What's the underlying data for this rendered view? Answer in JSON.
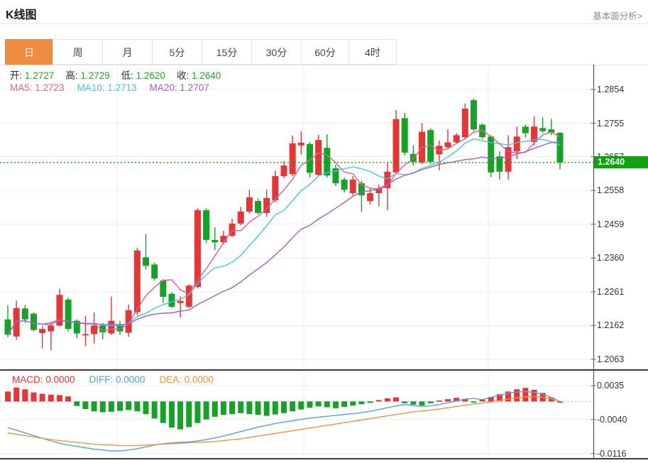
{
  "header": {
    "title": "K线图",
    "link": "基本面分析>"
  },
  "tabs": {
    "items": [
      "日",
      "周",
      "月",
      "5分",
      "15分",
      "30分",
      "60分",
      "4时"
    ],
    "active": "日",
    "active_bg": "#ef8c40"
  },
  "quote": {
    "items": [
      {
        "label": "开:",
        "value": "1.2727"
      },
      {
        "label": "高:",
        "value": "1.2729"
      },
      {
        "label": "低:",
        "value": "1.2620"
      },
      {
        "label": "收:",
        "value": "1.2640"
      }
    ],
    "value_color": "#2ba52b"
  },
  "ma_legend": {
    "items": [
      {
        "label": "MA5:",
        "value": "1.2723",
        "color": "#e85d8a"
      },
      {
        "label": "MA10:",
        "value": "1.2713",
        "color": "#3fc8e8"
      },
      {
        "label": "MA20:",
        "value": "1.2707",
        "color": "#9f5fd0"
      }
    ]
  },
  "macd_legend": {
    "items": [
      {
        "label": "MACD:",
        "value": "0.0000",
        "color": "#e73434"
      },
      {
        "label": "DIFF:",
        "value": "0.0000",
        "color": "#55a0e8"
      },
      {
        "label": "DEA:",
        "value": "0.0000",
        "color": "#f2953a"
      }
    ]
  },
  "price_tag": {
    "value": "1.2640",
    "bg": "#0fa30f"
  },
  "colors": {
    "up": "#e73434",
    "down": "#15a325",
    "grid": "#e9eef5",
    "axis": "#555555",
    "separator": "#3a3a3a",
    "zero_dotted": "#a9cfee",
    "price_dotted": "#0fa30f"
  },
  "chart_data": {
    "type": "candlestick+macd",
    "title": "K线图",
    "interval": "日",
    "legend_position": "top-left",
    "grid": true,
    "price_panel": {
      "yticks": [
        "1.2854",
        "1.2755",
        "1.2657",
        "1.2558",
        "1.2459",
        "1.2360",
        "1.2261",
        "1.2162",
        "1.2063"
      ],
      "ylim": [
        1.2063,
        1.2854
      ],
      "current_price": 1.264,
      "ma_periods": [
        5,
        10,
        20
      ],
      "candles_format": [
        "open",
        "high",
        "low",
        "close"
      ],
      "candles": [
        [
          1.218,
          1.2222,
          1.2128,
          1.2135
        ],
        [
          1.213,
          1.2235,
          1.212,
          1.2213
        ],
        [
          1.2212,
          1.2222,
          1.217,
          1.218
        ],
        [
          1.2197,
          1.2201,
          1.2145,
          1.2149
        ],
        [
          1.214,
          1.216,
          1.2095,
          1.2152
        ],
        [
          1.2145,
          1.217,
          1.209,
          1.2162
        ],
        [
          1.2162,
          1.227,
          1.216,
          1.2252
        ],
        [
          1.2238,
          1.2244,
          1.2145,
          1.2152
        ],
        [
          1.2176,
          1.218,
          1.2125,
          1.2139
        ],
        [
          1.2133,
          1.219,
          1.2102,
          1.2137
        ],
        [
          1.2137,
          1.22,
          1.211,
          1.2162
        ],
        [
          1.2162,
          1.217,
          1.2122,
          1.2142
        ],
        [
          1.2139,
          1.2247,
          1.2135,
          1.2176
        ],
        [
          1.2166,
          1.2176,
          1.2135,
          1.2145
        ],
        [
          1.2141,
          1.2224,
          1.2129,
          1.2207
        ],
        [
          1.2201,
          1.239,
          1.2193,
          1.2382
        ],
        [
          1.2362,
          1.243,
          1.2327,
          1.2337
        ],
        [
          1.2341,
          1.2346,
          1.2294,
          1.23
        ],
        [
          1.2294,
          1.2298,
          1.2228,
          1.2246
        ],
        [
          1.2255,
          1.226,
          1.2213,
          1.2217
        ],
        [
          1.2228,
          1.2248,
          1.2186,
          1.2234
        ],
        [
          1.2217,
          1.2283,
          1.2213,
          1.2279
        ],
        [
          1.2275,
          1.2506,
          1.2271,
          1.25
        ],
        [
          1.25,
          1.2506,
          1.2404,
          1.2413
        ],
        [
          1.2413,
          1.245,
          1.2383,
          1.2406
        ],
        [
          1.2406,
          1.244,
          1.24,
          1.2425
        ],
        [
          1.2425,
          1.2475,
          1.2421,
          1.2461
        ],
        [
          1.2461,
          1.251,
          1.2456,
          1.2496
        ],
        [
          1.2496,
          1.256,
          1.249,
          1.2538
        ],
        [
          1.2527,
          1.2535,
          1.2488,
          1.2492
        ],
        [
          1.2492,
          1.256,
          1.2481,
          1.2536
        ],
        [
          1.2529,
          1.2616,
          1.2523,
          1.26
        ],
        [
          1.26,
          1.2644,
          1.2594,
          1.2631
        ],
        [
          1.2606,
          1.2719,
          1.26,
          1.2696
        ],
        [
          1.269,
          1.2731,
          1.2664,
          1.2698
        ],
        [
          1.2694,
          1.27,
          1.2596,
          1.261
        ],
        [
          1.2604,
          1.2721,
          1.26,
          1.2706
        ],
        [
          1.2683,
          1.2723,
          1.2596,
          1.2602
        ],
        [
          1.2623,
          1.2633,
          1.2571,
          1.2579
        ],
        [
          1.259,
          1.2596,
          1.2552,
          1.256
        ],
        [
          1.255,
          1.26,
          1.254,
          1.259
        ],
        [
          1.2579,
          1.2586,
          1.2495,
          1.2544
        ],
        [
          1.2527,
          1.2565,
          1.2516,
          1.255
        ],
        [
          1.255,
          1.2575,
          1.2512,
          1.2565
        ],
        [
          1.2565,
          1.2638,
          1.25,
          1.2613
        ],
        [
          1.2611,
          1.2794,
          1.2607,
          1.2767
        ],
        [
          1.277,
          1.2786,
          1.2661,
          1.2669
        ],
        [
          1.2665,
          1.269,
          1.2631,
          1.2642
        ],
        [
          1.264,
          1.2755,
          1.2635,
          1.273
        ],
        [
          1.2735,
          1.274,
          1.2636,
          1.2642
        ],
        [
          1.2664,
          1.2704,
          1.2617,
          1.2689
        ],
        [
          1.2685,
          1.2737,
          1.2679,
          1.2699
        ],
        [
          1.2699,
          1.2726,
          1.2695,
          1.272
        ],
        [
          1.2714,
          1.2813,
          1.271,
          1.2798
        ],
        [
          1.2823,
          1.2827,
          1.2731,
          1.2737
        ],
        [
          1.2751,
          1.2755,
          1.2708,
          1.2714
        ],
        [
          1.2716,
          1.272,
          1.2597,
          1.2611
        ],
        [
          1.2658,
          1.2673,
          1.259,
          1.2613
        ],
        [
          1.2613,
          1.272,
          1.259,
          1.2685
        ],
        [
          1.2673,
          1.2745,
          1.265,
          1.2716
        ],
        [
          1.2745,
          1.2751,
          1.2714,
          1.2726
        ],
        [
          1.27,
          1.2775,
          1.269,
          1.2745
        ],
        [
          1.2741,
          1.2772,
          1.2726,
          1.2732
        ],
        [
          1.2737,
          1.2768,
          1.272,
          1.2728
        ],
        [
          1.2727,
          1.2729,
          1.262,
          1.264
        ]
      ]
    },
    "macd_panel": {
      "yticks": [
        "0.0035",
        "-0.0040",
        "-0.0116"
      ],
      "macd": 0.0,
      "diff_now": 0.0,
      "dea_now": 0.0,
      "hist": [
        0.0022,
        0.0031,
        0.0027,
        0.002,
        0.0017,
        0.0015,
        0.0014,
        0.0011,
        -0.001,
        -0.0017,
        -0.0022,
        -0.0024,
        -0.0023,
        -0.0021,
        -0.0019,
        -0.0022,
        -0.0028,
        -0.0038,
        -0.0048,
        -0.0058,
        -0.0062,
        -0.0057,
        -0.0048,
        -0.004,
        -0.0034,
        -0.003,
        -0.0028,
        -0.0026,
        -0.0028,
        -0.003,
        -0.0032,
        -0.0029,
        -0.0026,
        -0.0022,
        -0.0018,
        -0.0014,
        -0.0011,
        -0.0013,
        -0.0015,
        -0.0012,
        -0.0009,
        -0.0006,
        -0.0003,
        0.0003,
        0.0007,
        0.0009,
        -0.0004,
        -0.0007,
        -0.0009,
        -0.0004,
        0.0002,
        0.0005,
        0.0008,
        0.0006,
        -0.0003,
        0.0004,
        0.001,
        0.0016,
        0.0022,
        0.0027,
        0.003,
        0.0026,
        0.0019,
        0.0009,
        0.0
      ],
      "diff": [
        -0.0058,
        -0.0064,
        -0.007,
        -0.0076,
        -0.0082,
        -0.0088,
        -0.0093,
        -0.0097,
        -0.01,
        -0.0103,
        -0.0106,
        -0.0108,
        -0.011,
        -0.011,
        -0.0108,
        -0.0105,
        -0.0101,
        -0.0097,
        -0.0094,
        -0.0092,
        -0.0091,
        -0.009,
        -0.0088,
        -0.0085,
        -0.0081,
        -0.0077,
        -0.0072,
        -0.0067,
        -0.0062,
        -0.0057,
        -0.0053,
        -0.0049,
        -0.0046,
        -0.0043,
        -0.004,
        -0.0037,
        -0.0035,
        -0.0033,
        -0.0031,
        -0.0029,
        -0.0027,
        -0.0025,
        -0.0022,
        -0.0018,
        -0.0014,
        -0.001,
        -0.0007,
        -0.0009,
        -0.0011,
        -0.001,
        -0.0007,
        -0.0003,
        0.0001,
        0.0005,
        0.0007,
        0.0004,
        0.0009,
        0.0014,
        0.0018,
        0.0021,
        0.0022,
        0.002,
        0.0016,
        0.0009,
        0.0
      ],
      "dea": [
        -0.007,
        -0.0073,
        -0.0076,
        -0.0079,
        -0.0082,
        -0.0085,
        -0.0087,
        -0.0089,
        -0.0091,
        -0.0093,
        -0.0095,
        -0.0096,
        -0.0097,
        -0.0098,
        -0.0098,
        -0.0098,
        -0.0097,
        -0.0096,
        -0.0095,
        -0.0094,
        -0.0093,
        -0.0092,
        -0.0091,
        -0.009,
        -0.0089,
        -0.0087,
        -0.0085,
        -0.0083,
        -0.008,
        -0.0077,
        -0.0074,
        -0.0071,
        -0.0068,
        -0.0065,
        -0.0062,
        -0.0059,
        -0.0056,
        -0.0053,
        -0.005,
        -0.0047,
        -0.0044,
        -0.0041,
        -0.0038,
        -0.0035,
        -0.0032,
        -0.0029,
        -0.0026,
        -0.0023,
        -0.0021,
        -0.0019,
        -0.0017,
        -0.0014,
        -0.0011,
        -0.0008,
        -0.0006,
        -0.0004,
        -0.0001,
        0.0002,
        0.0005,
        0.0008,
        0.001,
        0.0011,
        0.0009,
        0.0006,
        0.0
      ]
    }
  }
}
